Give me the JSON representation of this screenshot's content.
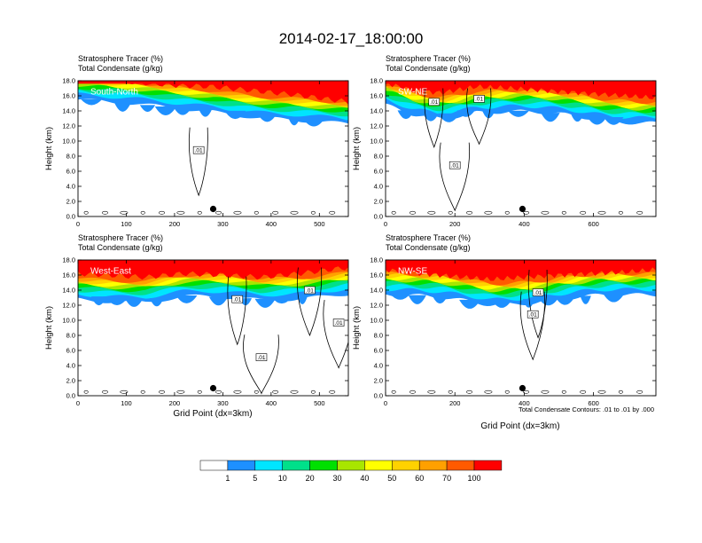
{
  "figure_title": "2014-02-17_18:00:00",
  "subtitle_line1": "Stratosphere Tracer   (%)",
  "subtitle_line2": "Total Condensate   (g/kg)",
  "ylabel": "Height (km)",
  "xlabel": "Grid Point (dx=3km)",
  "contour_note": "Total Condensate Contours: .01 to .01 by .000",
  "contour_label": ".01",
  "colors": {
    "levels": [
      "#ffffff",
      "#1e90ff",
      "#00e5ff",
      "#00e08a",
      "#00e000",
      "#a8e600",
      "#ffff00",
      "#ffd200",
      "#ffa000",
      "#ff5a00",
      "#ff0000"
    ],
    "contour": "#000000",
    "marker": "#000000"
  },
  "chart_data": {
    "type": "heatmap",
    "colorbar": {
      "levels": [
        1,
        5,
        10,
        20,
        30,
        40,
        50,
        60,
        70,
        100
      ],
      "labels": [
        "1",
        "5",
        "10",
        "20",
        "30",
        "40",
        "50",
        "60",
        "70",
        "100"
      ]
    },
    "panels": [
      {
        "name": "South-North",
        "title": "South-North",
        "xlim": [
          0,
          560
        ],
        "ylim": [
          0,
          18
        ],
        "xticks": [
          0,
          100,
          200,
          300,
          400,
          500
        ],
        "xtick_labels": [
          "0",
          "100",
          "200",
          "300",
          "400",
          "500"
        ],
        "yticks": [
          0,
          2,
          4,
          6,
          8,
          10,
          12,
          14,
          16,
          18
        ],
        "ytick_labels": [
          "0.0",
          "2.0",
          "4.0",
          "6.0",
          "8.0",
          "10.0",
          "12.0",
          "14.0",
          "16.0",
          "18.0"
        ],
        "marker_x": 280,
        "tropopause_x": [
          0,
          60,
          140,
          200,
          280,
          360,
          440,
          500,
          560
        ],
        "tropopause_km": [
          15.5,
          15.0,
          14.5,
          14.2,
          14.0,
          13.5,
          13.0,
          12.5,
          12.0
        ],
        "contour_labels": [
          {
            "x": 250,
            "km": 8.8
          }
        ]
      },
      {
        "name": "SW-NE",
        "title": "SW-NE",
        "xlim": [
          0,
          780
        ],
        "ylim": [
          0,
          18
        ],
        "xticks": [
          0,
          200,
          400,
          600
        ],
        "xtick_labels": [
          "0",
          "200",
          "400",
          "600"
        ],
        "yticks": [
          0,
          2,
          4,
          6,
          8,
          10,
          12,
          14,
          16,
          18
        ],
        "ytick_labels": [
          "0.0",
          "2.0",
          "4.0",
          "6.0",
          "8.0",
          "10.0",
          "12.0",
          "14.0",
          "16.0",
          "18.0"
        ],
        "marker_x": 395,
        "tropopause_x": [
          0,
          80,
          160,
          260,
          360,
          460,
          560,
          680,
          780
        ],
        "tropopause_km": [
          14.5,
          13.5,
          13.2,
          14.0,
          13.8,
          13.5,
          13.2,
          12.8,
          12.5
        ],
        "contour_labels": [
          {
            "x": 140,
            "km": 15.2
          },
          {
            "x": 270,
            "km": 15.6
          },
          {
            "x": 200,
            "km": 6.8
          }
        ]
      },
      {
        "name": "West-East",
        "title": "West-East",
        "xlim": [
          0,
          560
        ],
        "ylim": [
          0,
          18
        ],
        "xticks": [
          0,
          100,
          200,
          300,
          400,
          500
        ],
        "xtick_labels": [
          "0",
          "100",
          "200",
          "300",
          "400",
          "500"
        ],
        "yticks": [
          0,
          2,
          4,
          6,
          8,
          10,
          12,
          14,
          16,
          18
        ],
        "ytick_labels": [
          "0.0",
          "2.0",
          "4.0",
          "6.0",
          "8.0",
          "10.0",
          "12.0",
          "14.0",
          "16.0",
          "18.0"
        ],
        "marker_x": 280,
        "tropopause_x": [
          0,
          60,
          140,
          220,
          300,
          380,
          460,
          520,
          560
        ],
        "tropopause_km": [
          13.0,
          12.8,
          12.5,
          13.0,
          12.8,
          12.5,
          13.0,
          13.5,
          13.8
        ],
        "contour_labels": [
          {
            "x": 330,
            "km": 12.8
          },
          {
            "x": 480,
            "km": 14.0
          },
          {
            "x": 540,
            "km": 9.7
          },
          {
            "x": 380,
            "km": 5.1
          }
        ]
      },
      {
        "name": "NW-SE",
        "title": "NW-SE",
        "xlim": [
          0,
          780
        ],
        "ylim": [
          0,
          18
        ],
        "xticks": [
          0,
          200,
          400,
          600
        ],
        "xtick_labels": [
          "0",
          "200",
          "400",
          "600"
        ],
        "yticks": [
          0,
          2,
          4,
          6,
          8,
          10,
          12,
          14,
          16,
          18
        ],
        "ytick_labels": [
          "0.0",
          "2.0",
          "4.0",
          "6.0",
          "8.0",
          "10.0",
          "12.0",
          "14.0",
          "16.0",
          "18.0"
        ],
        "marker_x": 395,
        "tropopause_x": [
          0,
          100,
          200,
          300,
          400,
          500,
          600,
          700,
          780
        ],
        "tropopause_km": [
          13.5,
          13.0,
          12.6,
          12.2,
          12.5,
          12.8,
          13.0,
          13.2,
          13.5
        ],
        "contour_labels": [
          {
            "x": 440,
            "km": 13.7
          },
          {
            "x": 425,
            "km": 10.8
          }
        ]
      }
    ]
  }
}
